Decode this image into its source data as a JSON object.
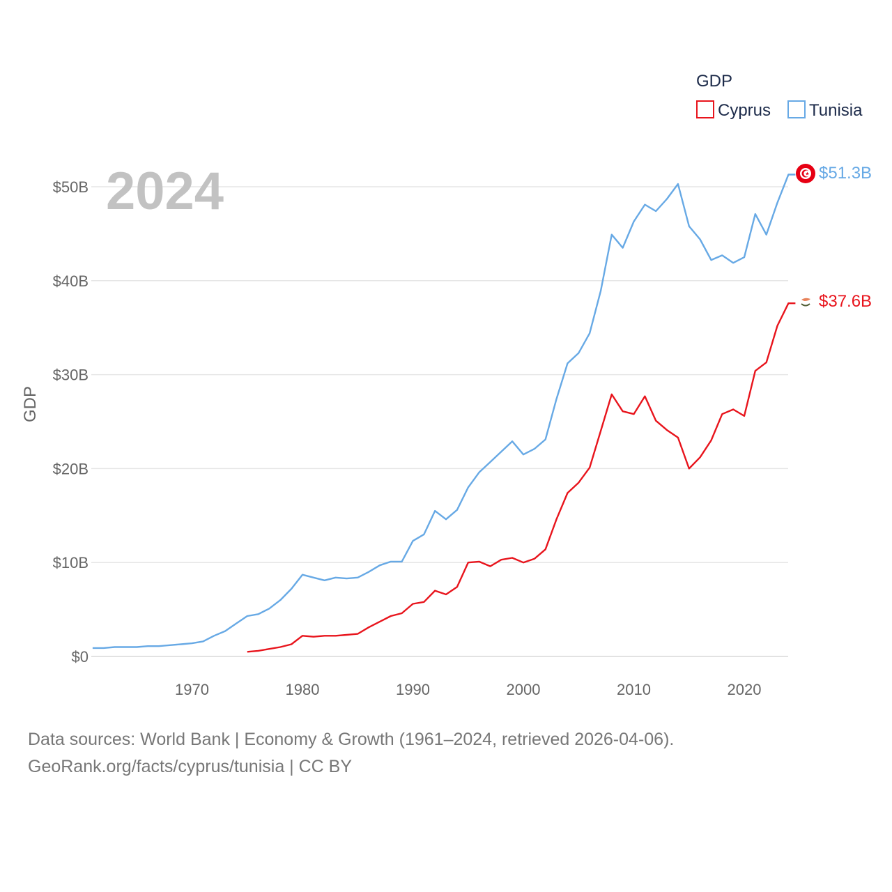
{
  "chart_data": {
    "type": "line",
    "title": "GDP",
    "year_label": "2024",
    "ylabel": "GDP",
    "xlabel": "",
    "xlim": [
      1961,
      2024
    ],
    "ylim": [
      0,
      55
    ],
    "unit": "billion USD",
    "yticks": [
      {
        "value": 0,
        "label": "$0"
      },
      {
        "value": 10,
        "label": "$10B"
      },
      {
        "value": 20,
        "label": "$20B"
      },
      {
        "value": 30,
        "label": "$30B"
      },
      {
        "value": 40,
        "label": "$40B"
      },
      {
        "value": 50,
        "label": "$50B"
      }
    ],
    "xticks": [
      {
        "value": 1970,
        "label": "1970"
      },
      {
        "value": 1980,
        "label": "1980"
      },
      {
        "value": 1990,
        "label": "1990"
      },
      {
        "value": 2000,
        "label": "2000"
      },
      {
        "value": 2010,
        "label": "2010"
      },
      {
        "value": 2020,
        "label": "2020"
      }
    ],
    "legend": {
      "title": "GDP",
      "position": "top-right"
    },
    "grid": true,
    "series": [
      {
        "name": "Cyprus",
        "color": "#e8141c",
        "end_label": "$37.6B",
        "x": [
          1975,
          1976,
          1977,
          1978,
          1979,
          1980,
          1981,
          1982,
          1983,
          1984,
          1985,
          1986,
          1987,
          1988,
          1989,
          1990,
          1991,
          1992,
          1993,
          1994,
          1995,
          1996,
          1997,
          1998,
          1999,
          2000,
          2001,
          2002,
          2003,
          2004,
          2005,
          2006,
          2007,
          2008,
          2009,
          2010,
          2011,
          2012,
          2013,
          2014,
          2015,
          2016,
          2017,
          2018,
          2019,
          2020,
          2021,
          2022,
          2023,
          2024
        ],
        "y": [
          0.5,
          0.6,
          0.8,
          1.0,
          1.3,
          2.2,
          2.1,
          2.2,
          2.2,
          2.3,
          2.4,
          3.1,
          3.7,
          4.3,
          4.6,
          5.6,
          5.8,
          7.0,
          6.6,
          7.4,
          10.0,
          10.1,
          9.6,
          10.3,
          10.5,
          10.0,
          10.4,
          11.4,
          14.6,
          17.4,
          18.5,
          20.1,
          24.0,
          27.9,
          26.1,
          25.8,
          27.7,
          25.1,
          24.1,
          23.3,
          20.0,
          21.2,
          23.0,
          25.8,
          26.3,
          25.6,
          30.4,
          31.3,
          35.2,
          37.6
        ]
      },
      {
        "name": "Tunisia",
        "color": "#67a9e5",
        "end_label": "$51.3B",
        "x": [
          1961,
          1962,
          1963,
          1964,
          1965,
          1966,
          1967,
          1968,
          1969,
          1970,
          1971,
          1972,
          1973,
          1974,
          1975,
          1976,
          1977,
          1978,
          1979,
          1980,
          1981,
          1982,
          1983,
          1984,
          1985,
          1986,
          1987,
          1988,
          1989,
          1990,
          1991,
          1992,
          1993,
          1994,
          1995,
          1996,
          1997,
          1998,
          1999,
          2000,
          2001,
          2002,
          2003,
          2004,
          2005,
          2006,
          2007,
          2008,
          2009,
          2010,
          2011,
          2012,
          2013,
          2014,
          2015,
          2016,
          2017,
          2018,
          2019,
          2020,
          2021,
          2022,
          2023,
          2024
        ],
        "y": [
          0.9,
          0.9,
          1.0,
          1.0,
          1.0,
          1.1,
          1.1,
          1.2,
          1.3,
          1.4,
          1.6,
          2.2,
          2.7,
          3.5,
          4.3,
          4.5,
          5.1,
          6.0,
          7.2,
          8.7,
          8.4,
          8.1,
          8.4,
          8.3,
          8.4,
          9.0,
          9.7,
          10.1,
          10.1,
          12.3,
          13.0,
          15.5,
          14.6,
          15.6,
          18.0,
          19.6,
          20.7,
          21.8,
          22.9,
          21.5,
          22.1,
          23.1,
          27.4,
          31.2,
          32.3,
          34.4,
          38.9,
          44.9,
          43.5,
          46.3,
          48.1,
          47.4,
          48.7,
          50.3,
          45.8,
          44.4,
          42.2,
          42.7,
          41.9,
          42.5,
          47.1,
          44.9,
          48.3,
          51.3
        ]
      }
    ]
  },
  "footer": {
    "line1": "Data sources: World Bank | Economy & Growth (1961–2024, retrieved 2026-04-06).",
    "line2": "GeoRank.org/facts/cyprus/tunisia | CC BY"
  }
}
